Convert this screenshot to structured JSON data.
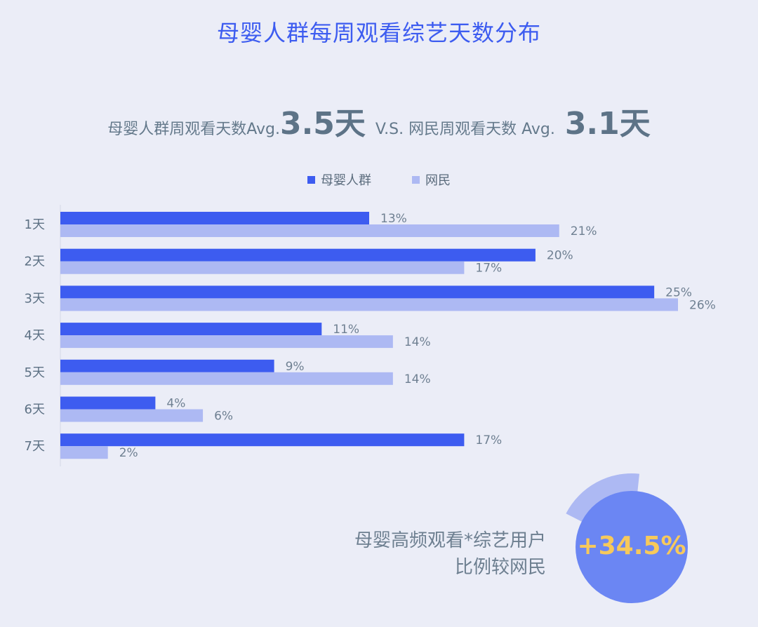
{
  "chart_data": {
    "type": "bar",
    "orientation": "horizontal",
    "title": "母婴人群每周观看综艺天数分布",
    "categories": [
      "1天",
      "2天",
      "3天",
      "4天",
      "5天",
      "6天",
      "7天"
    ],
    "series": [
      {
        "name": "母婴人群",
        "values": [
          13,
          20,
          25,
          11,
          9,
          4,
          17
        ],
        "labels": [
          "13%",
          "20%",
          "25%",
          "11%",
          "9%",
          "4%",
          "17%"
        ],
        "color": "#3d5cf0"
      },
      {
        "name": "网民",
        "values": [
          21,
          17,
          26,
          14,
          14,
          6,
          2
        ],
        "labels": [
          "21%",
          "17%",
          "26%",
          "14%",
          "14%",
          "6%",
          "2%"
        ],
        "color": "#adb9f3"
      }
    ],
    "value_unit": "%",
    "xlim": [
      0,
      26
    ],
    "legend_position": "top-center",
    "grid": false
  },
  "avg": {
    "prefix": "母婴人群周观看天数Avg.",
    "mom_value": "3.5天",
    "middle": "V.S. 网民周观看天数 Avg.",
    "net_value": "3.1天"
  },
  "summary": {
    "line1": "母婴高频观看*综艺用户",
    "line2": "比例较网民",
    "value": "+34.5%"
  },
  "colors": {
    "circle_main": "#6b86f3",
    "circle_arc": "#adb9f3",
    "highlight": "#f7c95b"
  }
}
